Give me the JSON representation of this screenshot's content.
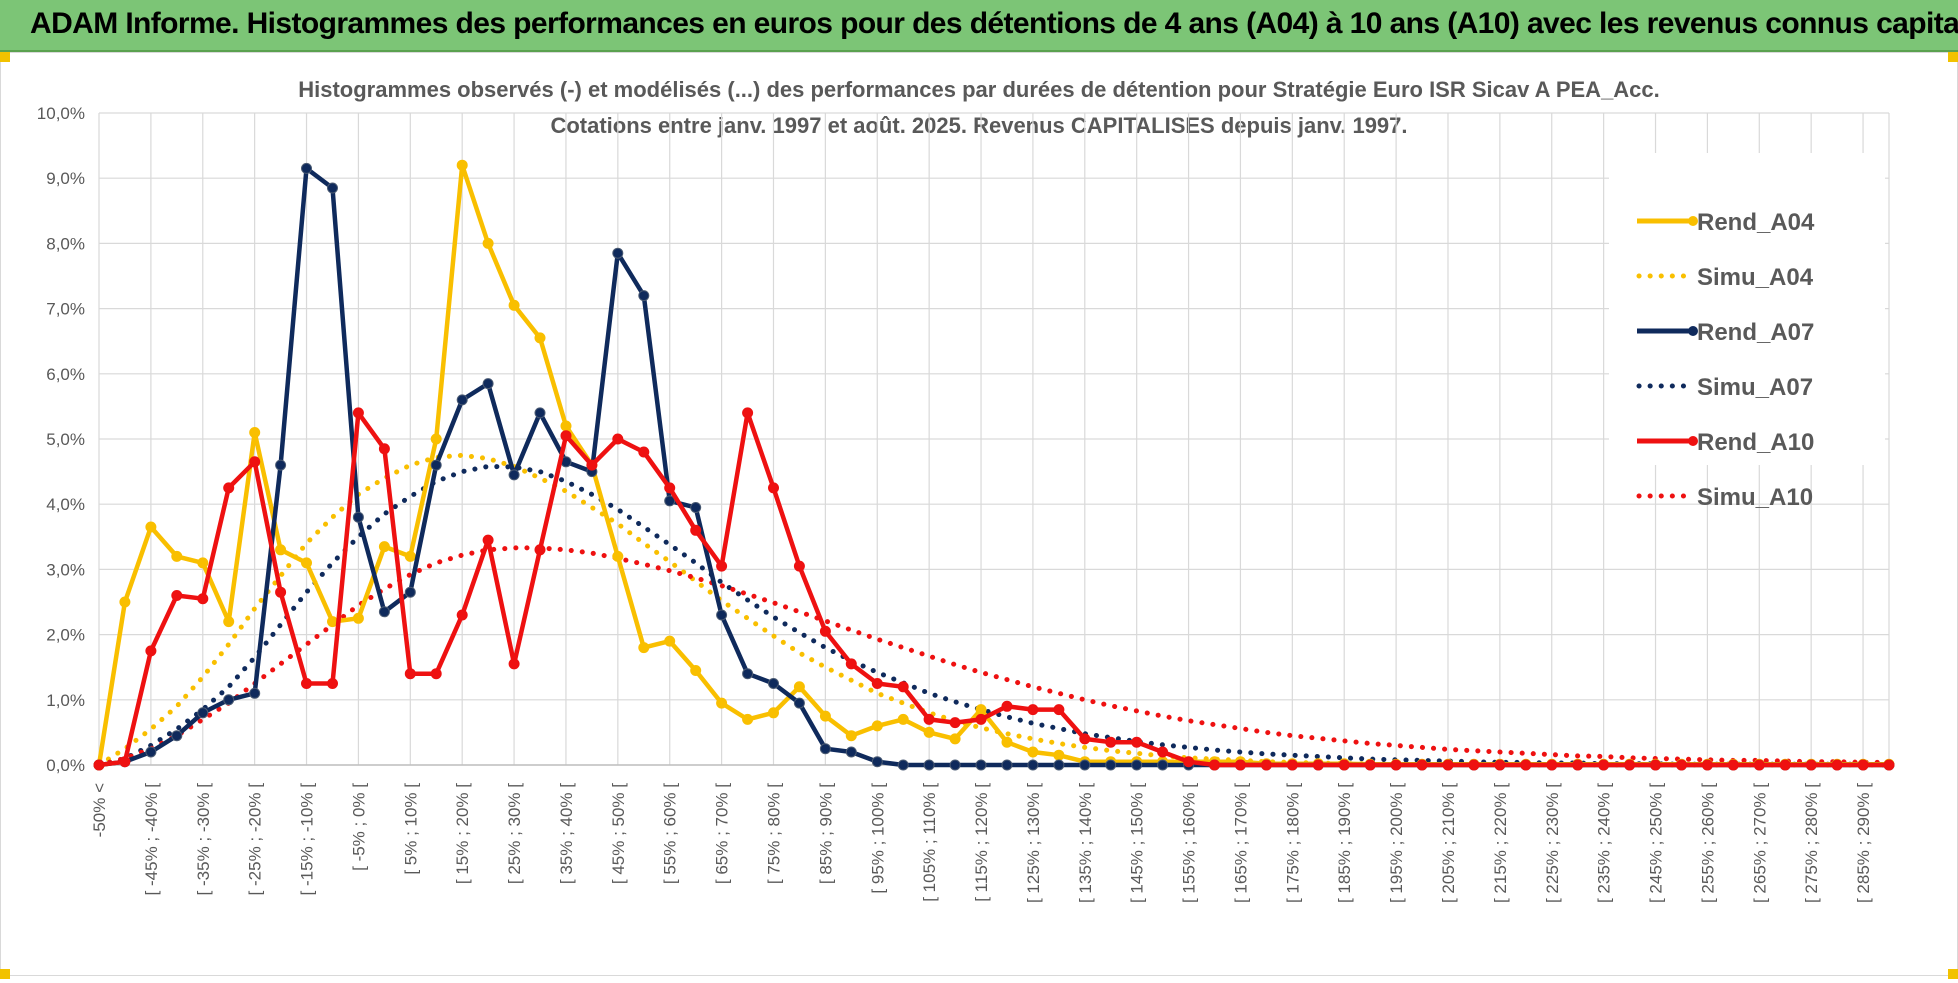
{
  "banner": {
    "title": "ADAM Informe. Histogrammes des performances en euros pour des détentions de 4 ans (A04) à 10 ans (A10) avec les revenus connus capitalisés"
  },
  "colors": {
    "banner_bg": "#7cc576",
    "A04": "#f9bf00",
    "A07": "#0f2a5c",
    "A10": "#ee1111",
    "grid": "#d9d9d9"
  },
  "chart_data": {
    "type": "line",
    "title": "Histogrammes observés (-) et modélisés (...) des performances par durées de détention pour Stratégie Euro ISR Sicav A PEA_Acc.",
    "subtitle": "Cotations entre janv. 1997 et août. 2025. Revenus CAPITALISES depuis janv. 1997.",
    "legend_position": "right",
    "grid": true,
    "ylim": [
      0,
      10
    ],
    "y_tick_labels": [
      "0,0%",
      "1,0%",
      "2,0%",
      "3,0%",
      "4,0%",
      "5,0%",
      "6,0%",
      "7,0%",
      "8,0%",
      "9,0%",
      "10,0%"
    ],
    "x_tick_labels": [
      "-50% <",
      "[ -45% ; -40% [",
      "[ -35% ; -30% [",
      "[ -25% ; -20% [",
      "[ -15% ; -10% [",
      "[ -5% ; 0% [",
      "[ 5% ; 10% [",
      "[ 15% ; 20% [",
      "[ 25% ; 30% [",
      "[ 35% ; 40% [",
      "[ 45% ; 50% [",
      "[ 55% ; 60% [",
      "[ 65% ; 70% [",
      "[ 75% ; 80% [",
      "[ 85% ; 90% [",
      "[ 95% ; 100% [",
      "[ 105% ; 110% [",
      "[ 115% ; 120% [",
      "[ 125% ; 130% [",
      "[ 135% ; 140% [",
      "[ 145% ; 150% [",
      "[ 155% ; 160% [",
      "[ 165% ; 170% [",
      "[ 175% ; 180% [",
      "[ 185% ; 190% [",
      "[ 195% ; 200% [",
      "[ 205% ; 210% [",
      "[ 215% ; 220% [",
      "[ 225% ; 230% [",
      "[ 235% ; 240% [",
      "[ 245% ; 250% [",
      "[ 255% ; 260% [",
      "[ 265% ; 270% [",
      "[ 275% ; 280% [",
      "[ 285% ; 290% ["
    ],
    "series": [
      {
        "name": "Rend_A04",
        "style": "solid",
        "color": "#f9bf00",
        "values": [
          0,
          2.5,
          3.65,
          3.2,
          3.1,
          2.2,
          5.1,
          3.3,
          3.1,
          2.2,
          2.25,
          3.35,
          3.2,
          5.0,
          9.2,
          8.0,
          7.05,
          6.55,
          5.2,
          4.6,
          3.2,
          1.8,
          1.9,
          1.45,
          0.95,
          0.7,
          0.8,
          1.2,
          0.75,
          0.45,
          0.6,
          0.7,
          0.5,
          0.4,
          0.85,
          0.35,
          0.2,
          0.15,
          0.05,
          0.05,
          0.05,
          0.05,
          0.05,
          0.05,
          0.05,
          0.02,
          0.02,
          0.02,
          0.02,
          0.01,
          0.01,
          0.01,
          0.01,
          0.01,
          0.01,
          0.01,
          0.01,
          0.01,
          0.01,
          0.01,
          0.01,
          0.01,
          0.01,
          0.01,
          0.01,
          0.01,
          0.01,
          0.01,
          0.01,
          0.01
        ]
      },
      {
        "name": "Simu_A04",
        "style": "dotted",
        "color": "#f9bf00",
        "values": [
          0,
          0.25,
          0.55,
          0.9,
          1.35,
          1.85,
          2.4,
          2.9,
          3.4,
          3.8,
          4.15,
          4.4,
          4.6,
          4.72,
          4.75,
          4.7,
          4.58,
          4.4,
          4.2,
          3.95,
          3.7,
          3.4,
          3.12,
          2.82,
          2.52,
          2.25,
          1.98,
          1.72,
          1.5,
          1.3,
          1.1,
          0.95,
          0.8,
          0.68,
          0.57,
          0.48,
          0.4,
          0.33,
          0.27,
          0.22,
          0.18,
          0.14,
          0.11,
          0.09,
          0.07,
          0.05,
          0.04,
          0.03,
          0.02,
          0.02,
          0.01,
          0.01,
          0.01,
          0.01,
          0.01,
          0,
          0,
          0,
          0,
          0,
          0,
          0,
          0,
          0,
          0,
          0,
          0,
          0,
          0,
          0
        ]
      },
      {
        "name": "Rend_A07",
        "style": "solid",
        "color": "#0f2a5c",
        "values": [
          0,
          0.05,
          0.2,
          0.45,
          0.8,
          1.0,
          1.1,
          4.6,
          9.15,
          8.85,
          3.8,
          2.35,
          2.65,
          4.6,
          5.6,
          5.85,
          4.45,
          5.4,
          4.65,
          4.5,
          7.85,
          7.2,
          4.05,
          3.95,
          2.3,
          1.4,
          1.25,
          0.95,
          0.25,
          0.2,
          0.05,
          0,
          0,
          0,
          0,
          0,
          0,
          0,
          0,
          0,
          0,
          0,
          0,
          0,
          0,
          0,
          0,
          0,
          0,
          0,
          0,
          0,
          0,
          0,
          0,
          0,
          0,
          0,
          0,
          0,
          0,
          0,
          0,
          0,
          0,
          0,
          0,
          0,
          0,
          0
        ]
      },
      {
        "name": "Simu_A07",
        "style": "dotted",
        "color": "#0f2a5c",
        "values": [
          0,
          0.1,
          0.3,
          0.55,
          0.85,
          1.2,
          1.65,
          2.15,
          2.65,
          3.1,
          3.5,
          3.85,
          4.12,
          4.35,
          4.5,
          4.58,
          4.57,
          4.5,
          4.35,
          4.15,
          3.92,
          3.65,
          3.38,
          3.1,
          2.8,
          2.53,
          2.27,
          2.03,
          1.8,
          1.6,
          1.42,
          1.26,
          1.1,
          0.97,
          0.85,
          0.74,
          0.64,
          0.56,
          0.48,
          0.42,
          0.36,
          0.31,
          0.27,
          0.23,
          0.2,
          0.17,
          0.15,
          0.13,
          0.11,
          0.09,
          0.08,
          0.07,
          0.06,
          0.05,
          0.04,
          0.04,
          0.03,
          0.03,
          0.02,
          0.02,
          0.02,
          0.01,
          0.01,
          0.01,
          0.01,
          0.01,
          0.01,
          0.01,
          0.01,
          0
        ]
      },
      {
        "name": "Rend_A10",
        "style": "solid",
        "color": "#ee1111",
        "values": [
          0,
          0.05,
          1.75,
          2.6,
          2.55,
          4.25,
          4.65,
          2.65,
          1.25,
          1.25,
          5.4,
          4.85,
          1.4,
          1.4,
          2.3,
          3.45,
          1.55,
          3.3,
          5.05,
          4.6,
          5.0,
          4.8,
          4.25,
          3.6,
          3.05,
          5.4,
          4.25,
          3.05,
          2.05,
          1.55,
          1.25,
          1.2,
          0.7,
          0.65,
          0.7,
          0.9,
          0.85,
          0.85,
          0.4,
          0.35,
          0.35,
          0.2,
          0.05,
          0,
          0,
          0,
          0,
          0,
          0,
          0,
          0,
          0,
          0,
          0,
          0,
          0,
          0,
          0,
          0,
          0,
          0,
          0,
          0,
          0,
          0,
          0,
          0,
          0,
          0,
          0
        ]
      },
      {
        "name": "Simu_A10",
        "style": "dotted",
        "color": "#ee1111",
        "values": [
          0,
          0.1,
          0.25,
          0.45,
          0.7,
          0.95,
          1.25,
          1.55,
          1.85,
          2.15,
          2.45,
          2.7,
          2.92,
          3.1,
          3.22,
          3.3,
          3.33,
          3.33,
          3.3,
          3.25,
          3.17,
          3.08,
          2.98,
          2.87,
          2.75,
          2.62,
          2.49,
          2.35,
          2.21,
          2.07,
          1.93,
          1.8,
          1.67,
          1.54,
          1.42,
          1.31,
          1.2,
          1.1,
          1.0,
          0.91,
          0.83,
          0.75,
          0.68,
          0.62,
          0.56,
          0.5,
          0.45,
          0.41,
          0.37,
          0.33,
          0.3,
          0.27,
          0.24,
          0.22,
          0.2,
          0.18,
          0.16,
          0.14,
          0.13,
          0.11,
          0.1,
          0.09,
          0.08,
          0.07,
          0.07,
          0.06,
          0.05,
          0.05,
          0.04,
          0.04
        ]
      }
    ]
  }
}
